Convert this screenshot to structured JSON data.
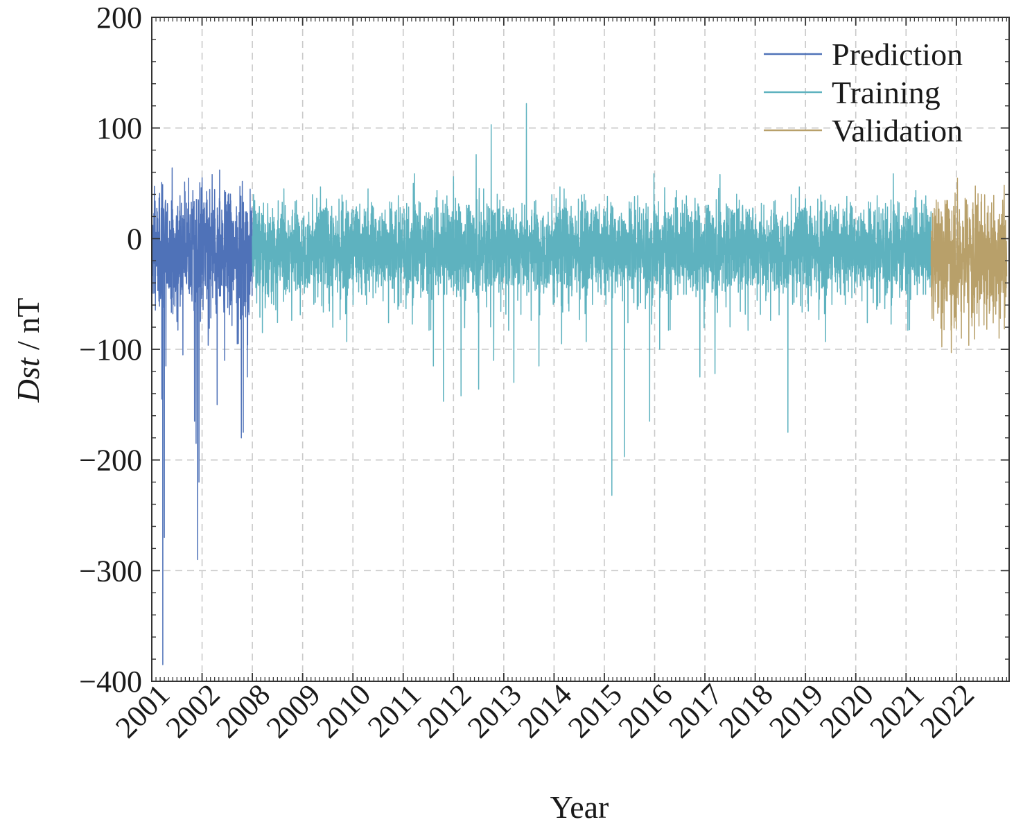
{
  "chart_data": {
    "type": "line",
    "title": "",
    "xlabel": "Year",
    "ylabel_italic": "Dst",
    "ylabel_rest": " / nT",
    "ylim": [
      -400,
      200
    ],
    "yticks": [
      200,
      100,
      0,
      -100,
      -200,
      -300,
      -400
    ],
    "ytick_labels": [
      "200",
      "100",
      "0",
      "−100",
      "−200",
      "−300",
      "−400"
    ],
    "xtick_labels": [
      "2001",
      "2002",
      "2008",
      "2009",
      "2010",
      "2011",
      "2012",
      "2013",
      "2014",
      "2015",
      "2016",
      "2017",
      "2018",
      "2019",
      "2020",
      "2021",
      "2022"
    ],
    "x_extent": [
      0,
      17.05
    ],
    "grid": true,
    "legend_position": "top-right",
    "series": [
      {
        "name": "Prediction",
        "color": "#4f72b8",
        "x_range": [
          0,
          2
        ],
        "baseline": -10,
        "noise": 25,
        "spike_rate": 0.11,
        "peaks": [
          [
            0.05,
            20
          ],
          [
            0.22,
            -385
          ],
          [
            0.25,
            -270
          ],
          [
            0.2,
            -145
          ],
          [
            0.28,
            -115
          ],
          [
            0.5,
            -75
          ],
          [
            0.62,
            -105
          ],
          [
            0.85,
            -165
          ],
          [
            0.88,
            -185
          ],
          [
            0.91,
            -290
          ],
          [
            0.94,
            -220
          ],
          [
            1.0,
            55
          ],
          [
            1.1,
            35
          ],
          [
            1.2,
            58
          ],
          [
            1.3,
            -150
          ],
          [
            1.35,
            62
          ],
          [
            1.45,
            -110
          ],
          [
            1.55,
            30
          ],
          [
            1.7,
            -95
          ],
          [
            1.78,
            -180
          ],
          [
            1.82,
            -175
          ],
          [
            1.9,
            -125
          ],
          [
            1.97,
            25
          ]
        ]
      },
      {
        "name": "Training",
        "color": "#5eb2bf",
        "x_range": [
          2,
          15.5
        ],
        "baseline": -8,
        "noise": 20,
        "spike_rate": 0.055,
        "peaks": [
          [
            2.2,
            -85
          ],
          [
            3.6,
            -80
          ],
          [
            4.3,
            45
          ],
          [
            5.2,
            50
          ],
          [
            5.6,
            -115
          ],
          [
            5.8,
            -147
          ],
          [
            6.0,
            56
          ],
          [
            6.15,
            -142
          ],
          [
            6.45,
            76
          ],
          [
            6.5,
            -136
          ],
          [
            6.6,
            45
          ],
          [
            6.75,
            103
          ],
          [
            6.8,
            -110
          ],
          [
            7.2,
            -130
          ],
          [
            7.45,
            122
          ],
          [
            7.7,
            -115
          ],
          [
            8.15,
            -95
          ],
          [
            8.2,
            45
          ],
          [
            8.6,
            40
          ],
          [
            9.15,
            -232
          ],
          [
            9.4,
            -197
          ],
          [
            9.6,
            38
          ],
          [
            9.9,
            -165
          ],
          [
            10.1,
            -100
          ],
          [
            10.2,
            46
          ],
          [
            10.9,
            -125
          ],
          [
            11.2,
            -122
          ],
          [
            11.3,
            58
          ],
          [
            11.75,
            30
          ],
          [
            12.65,
            -175
          ],
          [
            13.5,
            30
          ],
          [
            14.7,
            35
          ]
        ]
      },
      {
        "name": "Validation",
        "color": "#b8a06a",
        "x_range": [
          15.5,
          17.0
        ],
        "baseline": -15,
        "noise": 26,
        "spike_rate": 0.1,
        "peaks": [
          [
            15.6,
            35
          ],
          [
            15.9,
            -103
          ],
          [
            16.1,
            -90
          ],
          [
            16.2,
            35
          ],
          [
            16.5,
            40
          ],
          [
            16.85,
            -90
          ],
          [
            16.95,
            35
          ]
        ]
      }
    ]
  }
}
